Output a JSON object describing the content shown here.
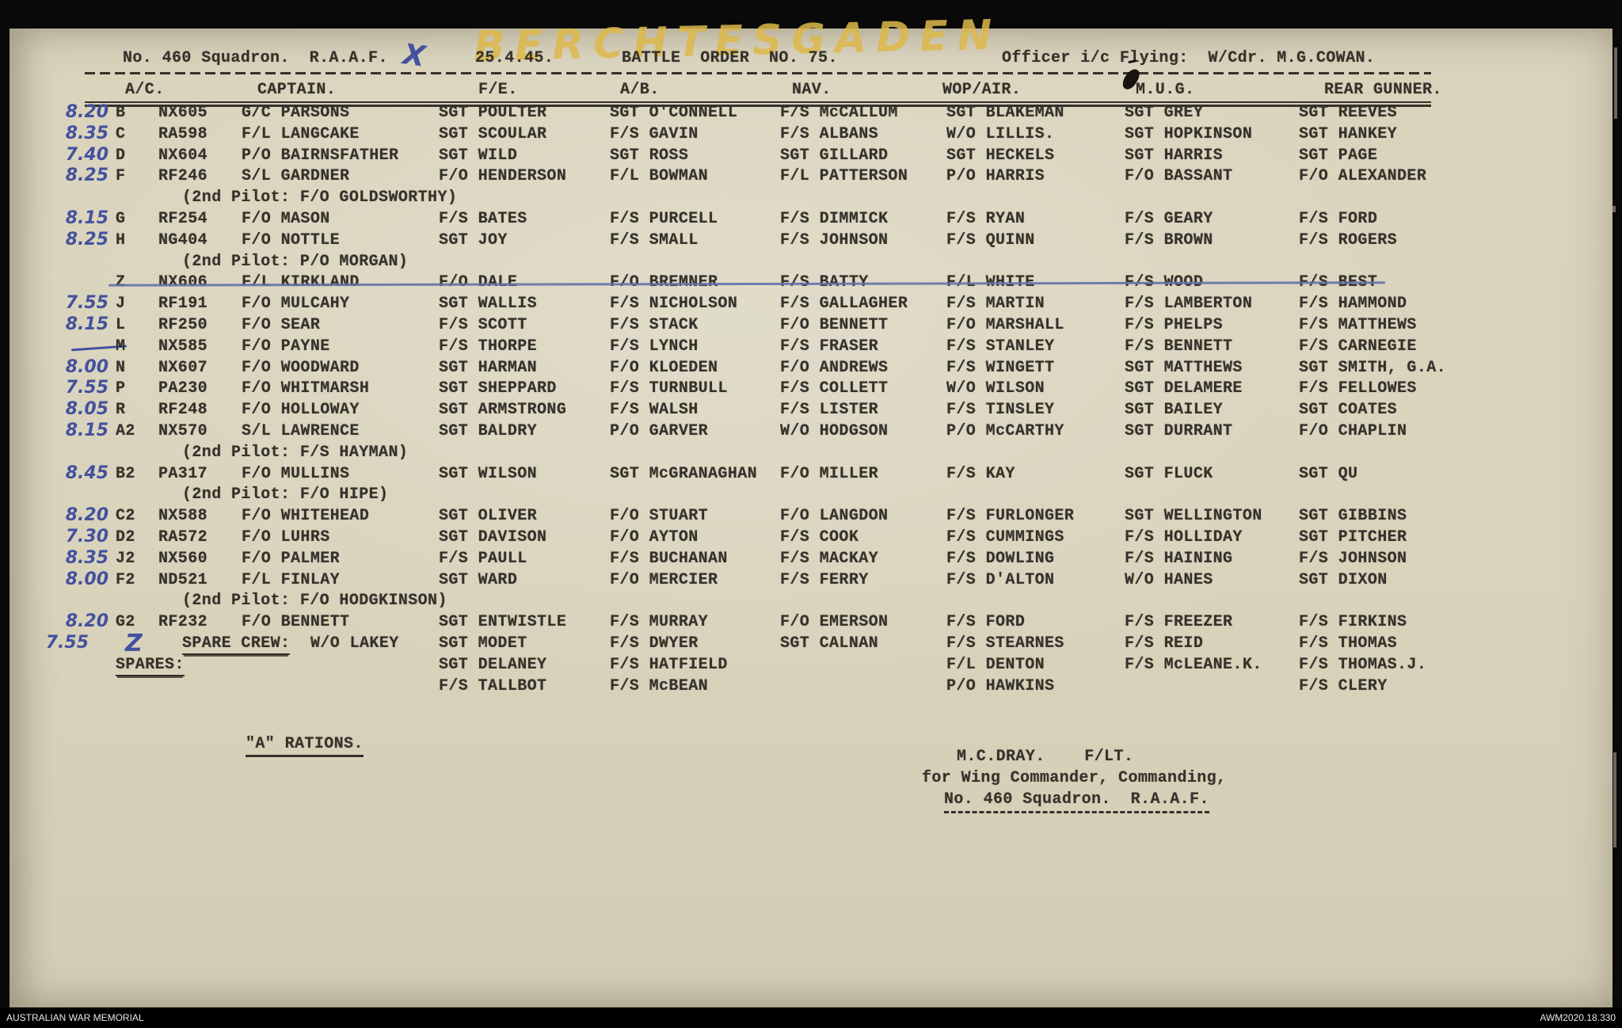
{
  "annotations": {
    "target_overlay": "BERCHTESGADEN",
    "x_mark": "X",
    "spare_crew_letter": "Z"
  },
  "header": {
    "squadron": "No. 460 Squadron.  R.A.A.F.",
    "date": "25.4.45.",
    "battle_order": "BATTLE  ORDER  NO. 75.",
    "officer": "Officer i/c Flying:  W/Cdr. M.G.COWAN."
  },
  "columns": [
    "A/C.",
    "CAPTAIN.",
    "F/E.",
    "A/B.",
    "NAV.",
    "WOP/AIR.",
    "M.U.G.",
    "REAR GUNNER."
  ],
  "rows": [
    {
      "time": "8.20",
      "letter": "B",
      "serial": "NX605",
      "captain": "G/C PARSONS",
      "fe": "SGT POULTER",
      "ab": "SGT O'CONNELL",
      "nav": "F/S McCALLUM",
      "wop": "SGT BLAKEMAN",
      "mug": "SGT GREY",
      "rear": "SGT REEVES"
    },
    {
      "time": "8.35",
      "letter": "C",
      "serial": "RA598",
      "captain": "F/L LANGCAKE",
      "fe": "SGT SCOULAR",
      "ab": "F/S GAVIN",
      "nav": "F/S ALBANS",
      "wop": "W/O LILLIS.",
      "mug": "SGT HOPKINSON",
      "rear": "SGT HANKEY"
    },
    {
      "time": "7.40",
      "letter": "D",
      "serial": "NX604",
      "captain": "P/O BAIRNSFATHER",
      "fe": "SGT WILD",
      "ab": "SGT ROSS",
      "nav": "SGT GILLARD",
      "wop": "SGT HECKELS",
      "mug": "SGT HARRIS",
      "rear": "SGT PAGE"
    },
    {
      "time": "8.25",
      "letter": "F",
      "serial": "RF246",
      "captain": "S/L GARDNER",
      "fe": "F/O HENDERSON",
      "ab": "F/L BOWMAN",
      "nav": "F/L PATTERSON",
      "wop": "P/O HARRIS",
      "mug": "F/O BASSANT",
      "rear": "F/O ALEXANDER"
    },
    {
      "cont": "(2nd Pilot: F/O GOLDSWORTHY)"
    },
    {
      "time": "8.15",
      "letter": "G",
      "serial": "RF254",
      "captain": "F/O MASON",
      "fe": "F/S BATES",
      "ab": "F/S PURCELL",
      "nav": "F/S DIMMICK",
      "wop": "F/S RYAN",
      "mug": "F/S GEARY",
      "rear": "F/S FORD"
    },
    {
      "time": "8.25",
      "letter": "H",
      "serial": "NG404",
      "captain": "F/O NOTTLE",
      "fe": "SGT JOY",
      "ab": "F/S SMALL",
      "nav": "F/S JOHNSON",
      "wop": "F/S QUINN",
      "mug": "F/S BROWN",
      "rear": "F/S ROGERS"
    },
    {
      "cont": "(2nd Pilot: P/O MORGAN)"
    },
    {
      "struck": true,
      "letter": "Z",
      "serial": "NX606",
      "captain": "F/L KIRKLAND",
      "fe": "F/O DALE",
      "ab": "F/O BREMNER",
      "nav": "F/S BATTY",
      "wop": "F/L WHITE",
      "mug": "F/S WOOD",
      "rear": "F/S BEST"
    },
    {
      "time": "7.55",
      "letter": "J",
      "serial": "RF191",
      "captain": "F/O MULCAHY",
      "fe": "SGT WALLIS",
      "ab": "F/S NICHOLSON",
      "nav": "F/S GALLAGHER",
      "wop": "F/S MARTIN",
      "mug": "F/S LAMBERTON",
      "rear": "F/S HAMMOND"
    },
    {
      "time": "8.15",
      "letter": "L",
      "serial": "RF250",
      "captain": "F/O SEAR",
      "fe": "F/S SCOTT",
      "ab": "F/S STACK",
      "nav": "F/O BENNETT",
      "wop": "F/O MARSHALL",
      "mug": "F/S PHELPS",
      "rear": "F/S MATTHEWS"
    },
    {
      "dash": true,
      "letter": "M",
      "serial": "NX585",
      "captain": "F/O PAYNE",
      "fe": "F/S THORPE",
      "ab": "F/S LYNCH",
      "nav": "F/S FRASER",
      "wop": "F/S STANLEY",
      "mug": "F/S BENNETT",
      "rear": "F/S CARNEGIE"
    },
    {
      "time": "8.00",
      "letter": "N",
      "serial": "NX607",
      "captain": "F/O WOODWARD",
      "fe": "SGT HARMAN",
      "ab": "F/O KLOEDEN",
      "nav": "F/O ANDREWS",
      "wop": "F/S WINGETT",
      "mug": "SGT MATTHEWS",
      "rear": "SGT SMITH, G.A."
    },
    {
      "time": "7.55",
      "letter": "P",
      "serial": "PA230",
      "captain": "F/O WHITMARSH",
      "fe": "SGT SHEPPARD",
      "ab": "F/S TURNBULL",
      "nav": "F/S COLLETT",
      "wop": "W/O WILSON",
      "mug": "SGT DELAMERE",
      "rear": "F/S FELLOWES"
    },
    {
      "time": "8.05",
      "letter": "R",
      "serial": "RF248",
      "captain": "F/O HOLLOWAY",
      "fe": "SGT ARMSTRONG",
      "ab": "F/S WALSH",
      "nav": "F/S LISTER",
      "wop": "F/S TINSLEY",
      "mug": "SGT BAILEY",
      "rear": "SGT COATES"
    },
    {
      "time": "8.15",
      "letter": "A2",
      "serial": "NX570",
      "captain": "S/L LAWRENCE",
      "fe": "SGT BALDRY",
      "ab": "P/O GARVER",
      "nav": "W/O HODGSON",
      "wop": "P/O McCARTHY",
      "mug": "SGT DURRANT",
      "rear": "F/O CHAPLIN"
    },
    {
      "cont": "(2nd Pilot: F/S HAYMAN)"
    },
    {
      "time": "8.45",
      "letter": "B2",
      "serial": "PA317",
      "captain": "F/O MULLINS",
      "fe": "SGT WILSON",
      "ab": "SGT McGRANAGHAN",
      "nav": "F/O MILLER",
      "wop": "F/S KAY",
      "mug": "SGT FLUCK",
      "rear": "SGT QU"
    },
    {
      "cont": "(2nd Pilot: F/O HIPE)"
    },
    {
      "time": "8.20",
      "letter": "C2",
      "serial": "NX588",
      "captain": "F/O WHITEHEAD",
      "fe": "SGT OLIVER",
      "ab": "F/O STUART",
      "nav": "F/O LANGDON",
      "wop": "F/S FURLONGER",
      "mug": "SGT WELLINGTON",
      "rear": "SGT GIBBINS"
    },
    {
      "time": "7.30",
      "letter": "D2",
      "serial": "RA572",
      "captain": "F/O LUHRS",
      "fe": "SGT DAVISON",
      "ab": "F/O AYTON",
      "nav": "F/S COOK",
      "wop": "F/S CUMMINGS",
      "mug": "F/S HOLLIDAY",
      "rear": "SGT PITCHER"
    },
    {
      "time": "8.35",
      "letter": "J2",
      "serial": "NX560",
      "captain": "F/O PALMER",
      "fe": "F/S PAULL",
      "ab": "F/S BUCHANAN",
      "nav": "F/S MACKAY",
      "wop": "F/S DOWLING",
      "mug": "F/S HAINING",
      "rear": "F/S JOHNSON"
    },
    {
      "time": "8.00",
      "letter": "F2",
      "serial": "ND521",
      "captain": "F/L FINLAY",
      "fe": "SGT WARD",
      "ab": "F/O MERCIER",
      "nav": "F/S FERRY",
      "wop": "F/S D'ALTON",
      "mug": "W/O HANES",
      "rear": "SGT DIXON"
    },
    {
      "cont": "(2nd Pilot: F/O HODGKINSON)"
    },
    {
      "time": "8.20",
      "letter": "G2",
      "serial": "RF232",
      "captain": "F/O BENNETT",
      "fe": "SGT ENTWISTLE",
      "ab": "F/S MURRAY",
      "nav": "F/O EMERSON",
      "wop": "F/S FORD",
      "mug": "F/S FREEZER",
      "rear": "F/S FIRKINS"
    },
    {
      "time": "7.55",
      "handz": true,
      "label": "SPARE CREW:",
      "captain": "W/O LAKEY",
      "fe": "SGT MODET",
      "ab": "F/S DWYER",
      "nav": "SGT CALNAN",
      "wop": "F/S STEARNES",
      "mug": "F/S REID",
      "rear": "F/S THOMAS"
    },
    {
      "label": "SPARES:",
      "fe": "SGT DELANEY",
      "ab": "F/S HATFIELD",
      "wop": "F/L DENTON",
      "mug": "F/S McLEANE.K.",
      "rear": "F/S THOMAS.J."
    },
    {
      "fe": "F/S TALLBOT",
      "ab": "F/S McBEAN",
      "wop": "P/O HAWKINS",
      "rear": "F/S CLERY"
    }
  ],
  "footer": {
    "rations": "\"A\" RATIONS.",
    "signature_name": "M.C.DRAY.    F/LT.",
    "signature_line2": "for Wing Commander, Commanding,",
    "signature_line3": "No. 460 Squadron.  R.A.A.F."
  },
  "archive_bar": {
    "left": "AUSTRALIAN WAR MEMORIAL",
    "right": "AWM2020.18.330"
  }
}
